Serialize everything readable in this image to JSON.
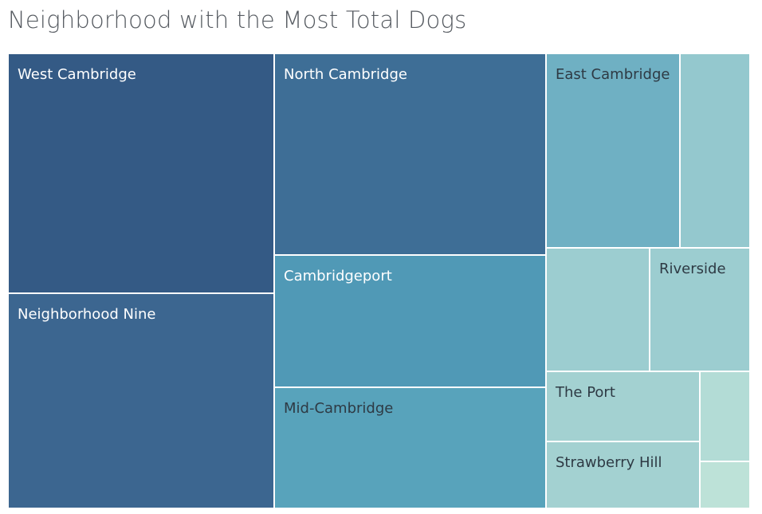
{
  "title": "Neighborhood with the Most Total Dogs",
  "chart_data": {
    "type": "treemap",
    "title": "Neighborhood with the Most Total Dogs",
    "tiles": [
      {
        "label": "West Cambridge",
        "color": "#345a85",
        "text_color": "#ffffff"
      },
      {
        "label": "Neighborhood Nine",
        "color": "#3c6690",
        "text_color": "#ffffff"
      },
      {
        "label": "North Cambridge",
        "color": "#3e6e96",
        "text_color": "#ffffff"
      },
      {
        "label": "Cambridgeport",
        "color": "#5099b6",
        "text_color": "#ffffff"
      },
      {
        "label": "Mid-Cambridge",
        "color": "#58a3bb",
        "text_color": "#2e3a44"
      },
      {
        "label": "East Cambridge",
        "color": "#6fb0c3",
        "text_color": "#2e3a44"
      },
      {
        "label": "",
        "color": "#94c8ce",
        "text_color": "#2e3a44"
      },
      {
        "label": "",
        "color": "#9ccdd0",
        "text_color": "#2e3a44"
      },
      {
        "label": "Riverside",
        "color": "#9ccdd0",
        "text_color": "#2e3a44"
      },
      {
        "label": "The Port",
        "color": "#a3d1d1",
        "text_color": "#2e3a44"
      },
      {
        "label": "Strawberry Hill",
        "color": "#a3d1d1",
        "text_color": "#2e3a44"
      },
      {
        "label": "",
        "color": "#b3dcd6",
        "text_color": "#2e3a44"
      },
      {
        "label": "",
        "color": "#bde2d8",
        "text_color": "#2e3a44"
      }
    ]
  }
}
